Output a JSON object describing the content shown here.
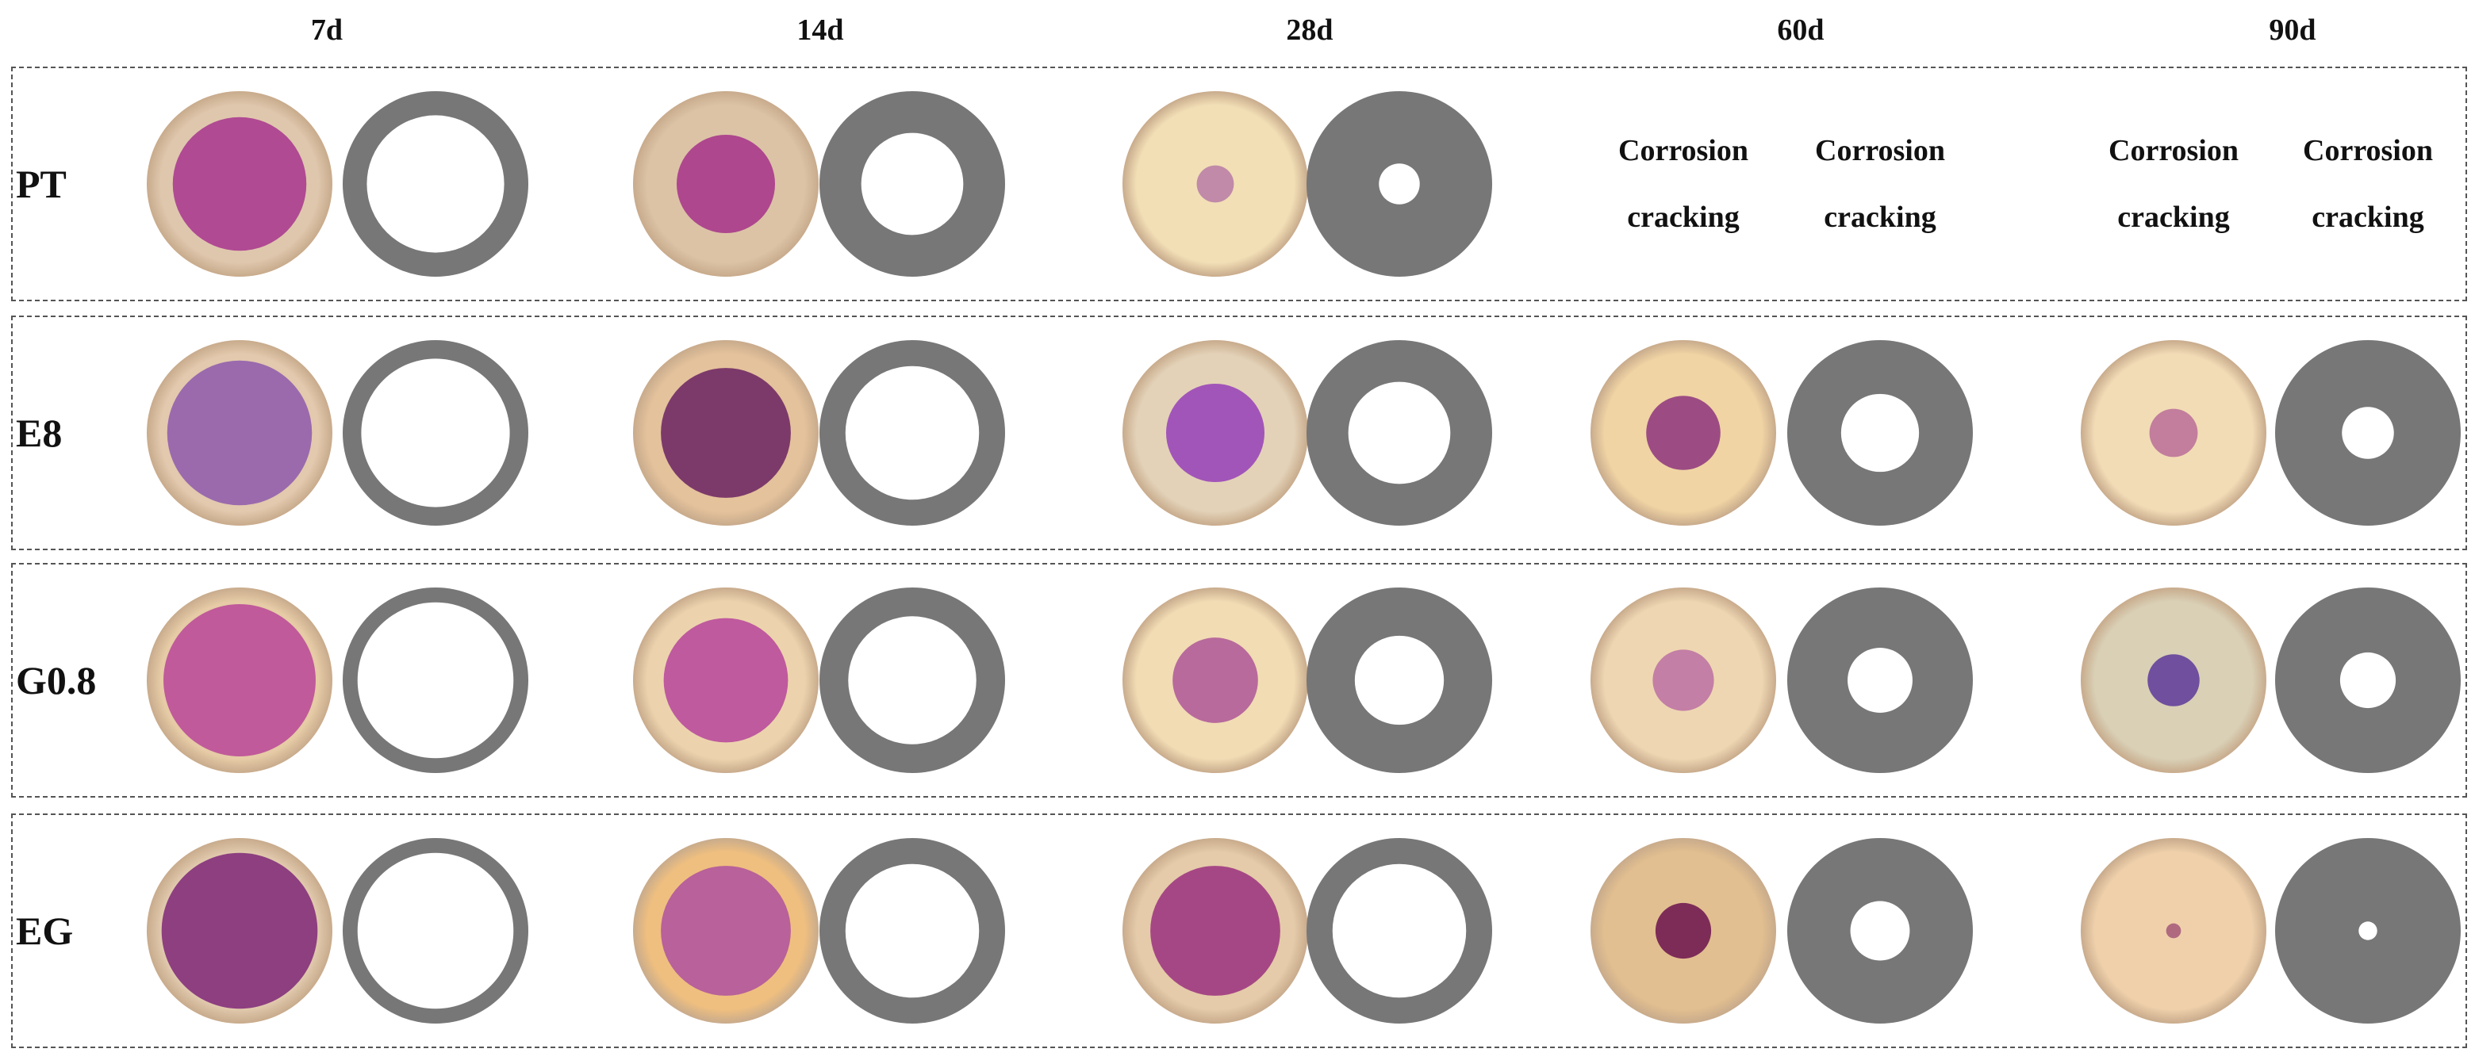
{
  "columns": [
    "7d",
    "14d",
    "28d",
    "60d",
    "90d"
  ],
  "rows": [
    {
      "label": "PT",
      "samples": [
        {
          "state": "measured",
          "stained_fraction": 0.72,
          "stain_color": "#b04a93",
          "paste_color": "#dfc7ad"
        },
        {
          "state": "measured",
          "stained_fraction": 0.53,
          "stain_color": "#ae478e",
          "paste_color": "#dcc3a6"
        },
        {
          "state": "measured",
          "stained_fraction": 0.2,
          "stain_color": "#c08aa8",
          "paste_color": "#f2dfb6"
        },
        {
          "state": "cracked"
        },
        {
          "state": "cracked"
        }
      ]
    },
    {
      "label": "E8",
      "samples": [
        {
          "state": "measured",
          "stained_fraction": 0.78,
          "stain_color": "#9a6aad",
          "paste_color": "#e3c9ae"
        },
        {
          "state": "measured",
          "stained_fraction": 0.7,
          "stain_color": "#7c3a6a",
          "paste_color": "#e4c29c"
        },
        {
          "state": "measured",
          "stained_fraction": 0.53,
          "stain_color": "#a255b8",
          "paste_color": "#e3d2b8"
        },
        {
          "state": "measured",
          "stained_fraction": 0.4,
          "stain_color": "#9c4c83",
          "paste_color": "#f0d4a4"
        },
        {
          "state": "measured",
          "stained_fraction": 0.26,
          "stain_color": "#c27e9c",
          "paste_color": "#f2dcb6"
        }
      ]
    },
    {
      "label": "G0.8",
      "samples": [
        {
          "state": "measured",
          "stained_fraction": 0.82,
          "stain_color": "#c05a9a",
          "paste_color": "#e6cba6"
        },
        {
          "state": "measured",
          "stained_fraction": 0.67,
          "stain_color": "#bf5a9e",
          "paste_color": "#ecd3ad"
        },
        {
          "state": "measured",
          "stained_fraction": 0.46,
          "stain_color": "#b86a9c",
          "paste_color": "#f1dcb4"
        },
        {
          "state": "measured",
          "stained_fraction": 0.33,
          "stain_color": "#c37fa5",
          "paste_color": "#eed6b2"
        },
        {
          "state": "measured",
          "stained_fraction": 0.28,
          "stain_color": "#6f4f9e",
          "paste_color": "#d9d0b6"
        }
      ]
    },
    {
      "label": "EG",
      "samples": [
        {
          "state": "measured",
          "stained_fraction": 0.84,
          "stain_color": "#8d3f80",
          "paste_color": "#e0c8ac"
        },
        {
          "state": "measured",
          "stained_fraction": 0.7,
          "stain_color": "#b8619a",
          "paste_color": "#efbf7f"
        },
        {
          "state": "measured",
          "stained_fraction": 0.7,
          "stain_color": "#a64785",
          "paste_color": "#e5cba9"
        },
        {
          "state": "measured",
          "stained_fraction": 0.3,
          "stain_color": "#7d2c58",
          "paste_color": "#e2bf90"
        },
        {
          "state": "measured",
          "stained_fraction": 0.08,
          "stain_color": "#b06a80",
          "paste_color": "#efd0ab"
        }
      ]
    }
  ],
  "note": {
    "line1": "Corrosion",
    "line2": "cracking"
  },
  "colors": {
    "mask": "#777777",
    "border": "#555555",
    "text": "#111111",
    "background": "#ffffff"
  }
}
